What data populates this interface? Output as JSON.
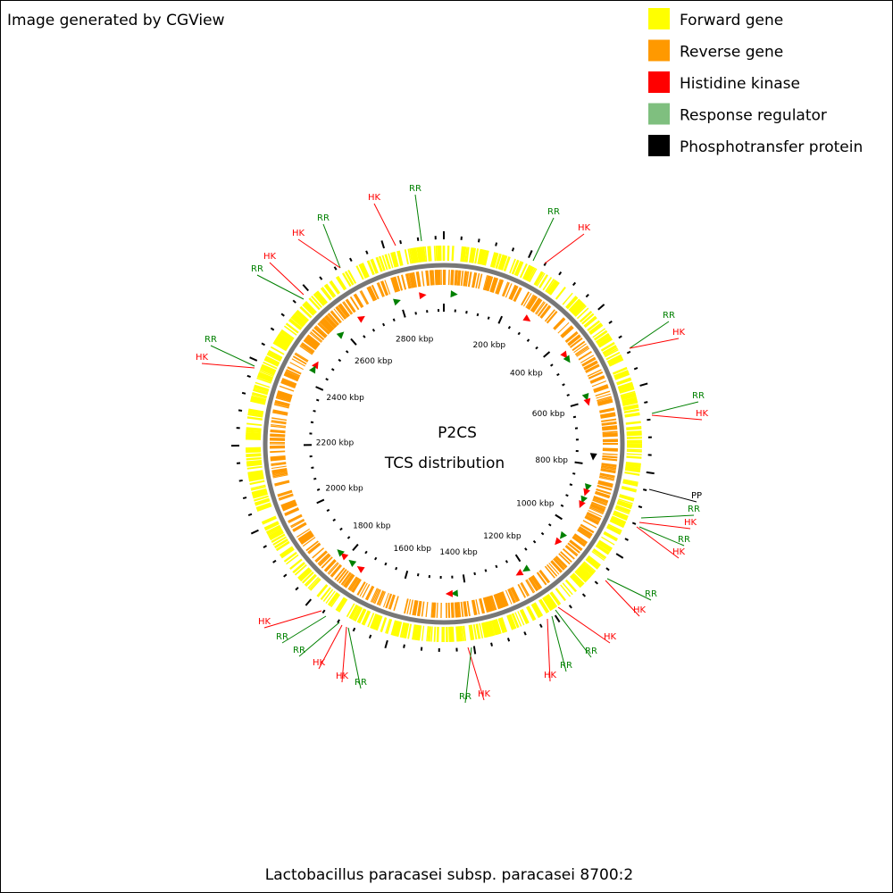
{
  "header": {
    "title": "Image generated by CGView"
  },
  "legend": [
    {
      "label": "Forward gene",
      "color": "#ffff00"
    },
    {
      "label": "Reverse gene",
      "color": "#ff9900"
    },
    {
      "label": "Histidine kinase",
      "color": "#ff0000"
    },
    {
      "label": "Response regulator",
      "color": "#7fbf7f"
    },
    {
      "label": "Phosphotransfer protein",
      "color": "#000000"
    }
  ],
  "center": {
    "line1": "P2CS",
    "line2": "TCS distribution"
  },
  "ruler": [
    "200 kbp",
    "400 kbp",
    "600 kbp",
    "800 kbp",
    "1000 kbp",
    "1200 kbp",
    "1400 kbp",
    "1600 kbp",
    "1800 kbp",
    "2000 kbp",
    "2200 kbp",
    "2400 kbp",
    "2600 kbp",
    "2800 kbp"
  ],
  "labels": [
    {
      "text": "HK",
      "color": "#ff0000"
    },
    {
      "text": "RR",
      "color": "#008000"
    },
    {
      "text": "RR",
      "color": "#008000"
    },
    {
      "text": "HK",
      "color": "#ff0000"
    },
    {
      "text": "RR",
      "color": "#008000"
    },
    {
      "text": "HK",
      "color": "#ff0000"
    },
    {
      "text": "HK",
      "color": "#ff0000"
    },
    {
      "text": "RR",
      "color": "#008000"
    },
    {
      "text": "RR",
      "color": "#008000"
    },
    {
      "text": "HK",
      "color": "#ff0000"
    },
    {
      "text": "RR",
      "color": "#008000"
    },
    {
      "text": "HK",
      "color": "#ff0000"
    },
    {
      "text": "RR",
      "color": "#008000"
    },
    {
      "text": "HK",
      "color": "#ff0000"
    },
    {
      "text": "PP",
      "color": "#000000"
    },
    {
      "text": "RR",
      "color": "#008000"
    },
    {
      "text": "HK",
      "color": "#ff0000"
    },
    {
      "text": "RR",
      "color": "#008000"
    },
    {
      "text": "HK",
      "color": "#ff0000"
    },
    {
      "text": "RR",
      "color": "#008000"
    },
    {
      "text": "HK",
      "color": "#ff0000"
    },
    {
      "text": "HK",
      "color": "#ff0000"
    },
    {
      "text": "RR",
      "color": "#008000"
    },
    {
      "text": "RR",
      "color": "#008000"
    },
    {
      "text": "HK",
      "color": "#ff0000"
    },
    {
      "text": "HK",
      "color": "#ff0000"
    },
    {
      "text": "RR",
      "color": "#008000"
    },
    {
      "text": "HK",
      "color": "#ff0000"
    },
    {
      "text": "RR",
      "color": "#008000"
    },
    {
      "text": "RR",
      "color": "#008000"
    },
    {
      "text": "HK",
      "color": "#ff0000"
    },
    {
      "text": "HK",
      "color": "#ff0000"
    },
    {
      "text": "RR",
      "color": "#008000"
    }
  ],
  "footer": {
    "caption": "Lactobacillus paracasei subsp. paracasei 8700:2"
  }
}
